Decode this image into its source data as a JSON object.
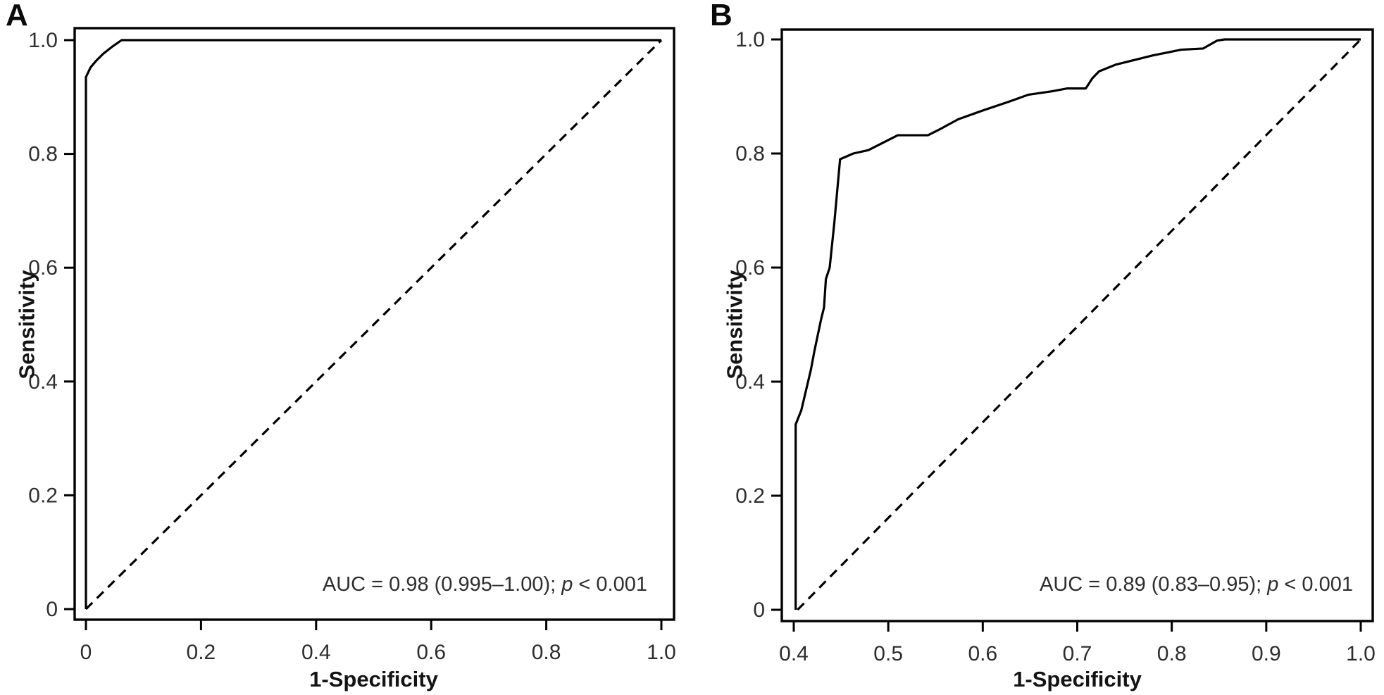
{
  "figure": {
    "background": "#ffffff",
    "line_color": "#000000",
    "tick_text_color": "#2e2e2e",
    "title_text_color": "#141414"
  },
  "chart_data": [
    {
      "type": "line",
      "panel_label": "A",
      "xlabel": "1-Specificity",
      "ylabel": "Sensitivity",
      "xlim": [
        0,
        1.0
      ],
      "ylim": [
        0,
        1.0
      ],
      "x_ticks": [
        0,
        0.2,
        0.4,
        0.6,
        0.8,
        1.0
      ],
      "x_tick_labels": [
        "0",
        "0.2",
        "0.4",
        "0.6",
        "0.8",
        "1.0"
      ],
      "y_ticks": [
        0,
        0.2,
        0.4,
        0.6,
        0.8,
        1.0
      ],
      "y_tick_labels": [
        "0",
        "0.2",
        "0.4",
        "0.6",
        "0.8",
        "1.0"
      ],
      "grid": false,
      "legend": null,
      "annotation": {
        "before_p": "AUC = 0.98 (0.995–1.00); ",
        "p": "p",
        "after_p": " < 0.001"
      },
      "auc": 0.98,
      "auc_ci": [
        0.995,
        1.0
      ],
      "p_value": "< 0.001",
      "roc_points": [
        [
          0.0,
          0.0
        ],
        [
          0.0,
          0.935
        ],
        [
          0.008,
          0.952
        ],
        [
          0.018,
          0.964
        ],
        [
          0.03,
          0.976
        ],
        [
          0.045,
          0.988
        ],
        [
          0.062,
          1.0
        ],
        [
          1.0,
          1.0
        ]
      ],
      "diagonal": [
        [
          0.0,
          0.0
        ],
        [
          1.0,
          1.0
        ]
      ]
    },
    {
      "type": "line",
      "panel_label": "B",
      "xlabel": "1-Specificity",
      "ylabel": "Sensitivity",
      "xlim": [
        0.4,
        1.0
      ],
      "ylim": [
        0,
        1.0
      ],
      "x_ticks": [
        0.4,
        0.5,
        0.6,
        0.7,
        0.8,
        0.9,
        1.0
      ],
      "x_tick_labels": [
        "0.4",
        "0.5",
        "0.6",
        "0.7",
        "0.8",
        "0.9",
        "1.0"
      ],
      "y_ticks": [
        0,
        0.2,
        0.4,
        0.6,
        0.8,
        1.0
      ],
      "y_tick_labels": [
        "0",
        "0.2",
        "0.4",
        "0.6",
        "0.8",
        "1.0"
      ],
      "grid": false,
      "legend": null,
      "annotation": {
        "before_p": "AUC = 0.89 (0.83–0.95); ",
        "p": "p",
        "after_p": " < 0.001"
      },
      "auc": 0.89,
      "auc_ci": [
        0.83,
        0.95
      ],
      "p_value": "< 0.001",
      "roc_points": [
        [
          0.402,
          0.0
        ],
        [
          0.402,
          0.325
        ],
        [
          0.408,
          0.35
        ],
        [
          0.418,
          0.42
        ],
        [
          0.422,
          0.455
        ],
        [
          0.429,
          0.51
        ],
        [
          0.432,
          0.53
        ],
        [
          0.434,
          0.58
        ],
        [
          0.438,
          0.6
        ],
        [
          0.443,
          0.68
        ],
        [
          0.446,
          0.735
        ],
        [
          0.449,
          0.79
        ],
        [
          0.463,
          0.8
        ],
        [
          0.479,
          0.806
        ],
        [
          0.51,
          0.832
        ],
        [
          0.542,
          0.832
        ],
        [
          0.554,
          0.842
        ],
        [
          0.574,
          0.86
        ],
        [
          0.601,
          0.876
        ],
        [
          0.628,
          0.891
        ],
        [
          0.648,
          0.903
        ],
        [
          0.673,
          0.909
        ],
        [
          0.689,
          0.914
        ],
        [
          0.709,
          0.914
        ],
        [
          0.716,
          0.932
        ],
        [
          0.723,
          0.944
        ],
        [
          0.741,
          0.956
        ],
        [
          0.78,
          0.972
        ],
        [
          0.81,
          0.982
        ],
        [
          0.833,
          0.984
        ],
        [
          0.848,
          0.998
        ],
        [
          0.856,
          1.0
        ],
        [
          1.0,
          1.0
        ]
      ],
      "diagonal": [
        [
          0.404,
          0.0
        ],
        [
          1.0,
          1.0
        ]
      ]
    }
  ]
}
